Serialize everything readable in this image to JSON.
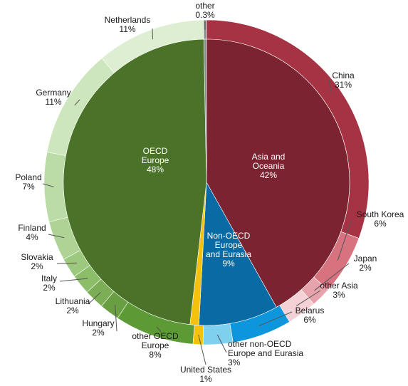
{
  "chart_data": {
    "type": "pie",
    "inner": [
      {
        "name": "Asia and Oceania",
        "value_label": "42%",
        "value": 42,
        "color": "#7b2330"
      },
      {
        "name": "Non-OECD Europe and Eurasia",
        "value_label": "9%",
        "value": 9,
        "color": "#0a6aa3"
      },
      {
        "name": "United States",
        "value_label": "",
        "value": 1,
        "color": "#f4c20d"
      },
      {
        "name": "OECD Europe",
        "value_label": "48%",
        "value": 48,
        "color": "#4a7228"
      },
      {
        "name": "other",
        "value_label": "",
        "value": 0.3,
        "color": "#8c8c8c"
      }
    ],
    "outer": [
      {
        "name": "China",
        "value_label": "31%",
        "value": 31,
        "color": "#a53344"
      },
      {
        "name": "South Korea",
        "value_label": "6%",
        "value": 6,
        "color": "#d6737f"
      },
      {
        "name": "Japan",
        "value_label": "2%",
        "value": 2,
        "color": "#e7a3ab"
      },
      {
        "name": "other Asia",
        "value_label": "3%",
        "value": 3,
        "color": "#f3d1d5"
      },
      {
        "name": "Belarus",
        "value_label": "6%",
        "value": 6,
        "color": "#0e96dc"
      },
      {
        "name": "other non-OECD Europe and Eurasia",
        "value_label": "3%",
        "value": 3,
        "color": "#7fcfef"
      },
      {
        "name": "United States",
        "value_label": "1%",
        "value": 1,
        "color": "#f4c20d"
      },
      {
        "name": "other OECD Europe",
        "value_label": "8%",
        "value": 8,
        "color": "#5c9a35"
      },
      {
        "name": "Hungary",
        "value_label": "2%",
        "value": 2,
        "color": "#6a9e42"
      },
      {
        "name": "Lithuania",
        "value_label": "2%",
        "value": 2,
        "color": "#7caf55"
      },
      {
        "name": "Italy",
        "value_label": "2%",
        "value": 2,
        "color": "#8cbd69"
      },
      {
        "name": "Slovakia",
        "value_label": "2%",
        "value": 2,
        "color": "#9dc97e"
      },
      {
        "name": "Finland",
        "value_label": "4%",
        "value": 4,
        "color": "#afd395"
      },
      {
        "name": "Poland",
        "value_label": "7%",
        "value": 7,
        "color": "#bcdca7"
      },
      {
        "name": "Germany",
        "value_label": "11%",
        "value": 11,
        "color": "#cde6bd"
      },
      {
        "name": "Netherlands",
        "value_label": "11%",
        "value": 11,
        "color": "#ddeed2"
      },
      {
        "name": "other",
        "value_label": "0.3%",
        "value": 0.3,
        "color": "#8c8c8c"
      }
    ],
    "inner_labels": [
      {
        "key": "oecd-europe",
        "lines": [
          "OECD",
          "Europe",
          "48%"
        ]
      },
      {
        "key": "asia-oceania",
        "lines": [
          "Asia and",
          "Oceania",
          "42%"
        ]
      },
      {
        "key": "non-oecd",
        "lines": [
          "Non-OECD",
          "Europe",
          "and Eurasia",
          "9%"
        ]
      }
    ],
    "outer_labels": [
      {
        "key": "other",
        "lines": [
          "other",
          "0.3%"
        ]
      },
      {
        "key": "netherlands",
        "lines": [
          "Netherlands",
          "11%"
        ]
      },
      {
        "key": "germany",
        "lines": [
          "Germany",
          "11%"
        ]
      },
      {
        "key": "poland",
        "lines": [
          "Poland",
          "7%"
        ]
      },
      {
        "key": "finland",
        "lines": [
          "Finland",
          "4%"
        ]
      },
      {
        "key": "slovakia",
        "lines": [
          "Slovakia",
          "2%"
        ]
      },
      {
        "key": "italy",
        "lines": [
          "Italy",
          "2%"
        ]
      },
      {
        "key": "lithuania",
        "lines": [
          "Lithuania",
          "2%"
        ]
      },
      {
        "key": "hungary",
        "lines": [
          "Hungary",
          "2%"
        ]
      },
      {
        "key": "other-oecd-europe",
        "lines": [
          "other OECD",
          "Europe",
          "8%"
        ]
      },
      {
        "key": "united-states",
        "lines": [
          "United States",
          "1%"
        ]
      },
      {
        "key": "other-non-oecd",
        "lines": [
          "other non-OECD",
          "Europe and Eurasia",
          "3%"
        ]
      },
      {
        "key": "belarus",
        "lines": [
          "Belarus",
          "6%"
        ]
      },
      {
        "key": "other-asia",
        "lines": [
          "other Asia",
          "3%"
        ]
      },
      {
        "key": "japan",
        "lines": [
          "Japan",
          "2%"
        ]
      },
      {
        "key": "south-korea",
        "lines": [
          "South Korea",
          "6%"
        ]
      },
      {
        "key": "china",
        "lines": [
          "China",
          "31%"
        ]
      }
    ]
  }
}
